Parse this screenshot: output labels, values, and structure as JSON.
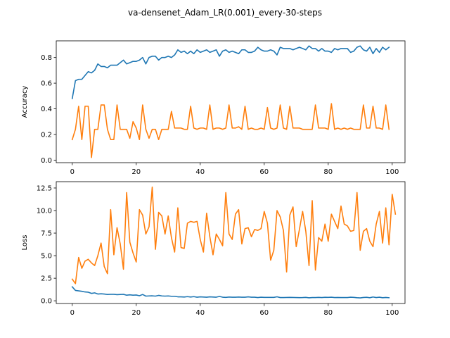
{
  "figure": {
    "suptitle": "va-densenet_Adam_LR(0.001)_every-30-steps"
  },
  "colors": {
    "blue": "#1f77b4",
    "orange": "#ff7f0e"
  },
  "chart_data": [
    {
      "type": "line",
      "ylabel": "Accuracy",
      "xlabel": "",
      "xlim": [
        -5,
        104
      ],
      "ylim": [
        -0.02,
        0.93
      ],
      "xticks": [
        0,
        20,
        40,
        60,
        80,
        100
      ],
      "yticks": [
        0.0,
        0.2,
        0.4,
        0.6,
        0.8
      ],
      "ytick_labels": [
        "0.0",
        "0.2",
        "0.4",
        "0.6",
        "0.8"
      ],
      "grid": false,
      "series": [
        {
          "color": "#1f77b4",
          "y": [
            0.48,
            0.62,
            0.63,
            0.63,
            0.66,
            0.69,
            0.68,
            0.7,
            0.75,
            0.73,
            0.73,
            0.72,
            0.74,
            0.74,
            0.74,
            0.76,
            0.78,
            0.75,
            0.76,
            0.77,
            0.77,
            0.78,
            0.8,
            0.75,
            0.8,
            0.81,
            0.81,
            0.78,
            0.8,
            0.8,
            0.81,
            0.8,
            0.82,
            0.86,
            0.84,
            0.85,
            0.83,
            0.85,
            0.83,
            0.86,
            0.84,
            0.85,
            0.86,
            0.84,
            0.85,
            0.86,
            0.81,
            0.85,
            0.86,
            0.84,
            0.85,
            0.84,
            0.83,
            0.86,
            0.86,
            0.84,
            0.84,
            0.85,
            0.88,
            0.86,
            0.85,
            0.85,
            0.86,
            0.85,
            0.82,
            0.88,
            0.87,
            0.87,
            0.87,
            0.86,
            0.87,
            0.88,
            0.87,
            0.86,
            0.89,
            0.87,
            0.87,
            0.85,
            0.87,
            0.85,
            0.85,
            0.84,
            0.87,
            0.86,
            0.87,
            0.87,
            0.87,
            0.84,
            0.85,
            0.88,
            0.89,
            0.86,
            0.85,
            0.88,
            0.83,
            0.87,
            0.84,
            0.88,
            0.86,
            0.88
          ]
        },
        {
          "color": "#ff7f0e",
          "y": [
            0.16,
            0.24,
            0.42,
            0.16,
            0.42,
            0.42,
            0.02,
            0.24,
            0.24,
            0.43,
            0.43,
            0.24,
            0.16,
            0.16,
            0.43,
            0.24,
            0.24,
            0.24,
            0.17,
            0.3,
            0.25,
            0.16,
            0.43,
            0.24,
            0.17,
            0.24,
            0.24,
            0.16,
            0.24,
            0.24,
            0.24,
            0.38,
            0.25,
            0.25,
            0.25,
            0.24,
            0.24,
            0.42,
            0.25,
            0.24,
            0.25,
            0.25,
            0.24,
            0.43,
            0.24,
            0.25,
            0.25,
            0.24,
            0.25,
            0.43,
            0.25,
            0.25,
            0.26,
            0.24,
            0.42,
            0.24,
            0.25,
            0.24,
            0.24,
            0.25,
            0.24,
            0.41,
            0.25,
            0.24,
            0.25,
            0.43,
            0.25,
            0.24,
            0.42,
            0.25,
            0.25,
            0.25,
            0.24,
            0.24,
            0.24,
            0.24,
            0.43,
            0.25,
            0.25,
            0.25,
            0.24,
            0.44,
            0.24,
            0.25,
            0.24,
            0.25,
            0.24,
            0.25,
            0.24,
            0.24,
            0.24,
            0.43,
            0.25,
            0.25,
            0.42,
            0.25,
            0.25,
            0.24,
            0.43,
            0.24
          ]
        }
      ]
    },
    {
      "type": "line",
      "ylabel": "Loss",
      "xlabel": "",
      "xlim": [
        -5,
        104
      ],
      "ylim": [
        -0.3,
        13.2
      ],
      "xticks": [
        0,
        20,
        40,
        60,
        80,
        100
      ],
      "yticks": [
        0.0,
        2.5,
        5.0,
        7.5,
        10.0,
        12.5
      ],
      "ytick_labels": [
        "0.0",
        "2.5",
        "5.0",
        "7.5",
        "10.0",
        "12.5"
      ],
      "grid": false,
      "series": [
        {
          "color": "#1f77b4",
          "y": [
            1.55,
            1.15,
            1.1,
            1.05,
            0.98,
            0.95,
            0.82,
            0.88,
            0.75,
            0.78,
            0.75,
            0.7,
            0.72,
            0.72,
            0.68,
            0.7,
            0.72,
            0.62,
            0.66,
            0.62,
            0.64,
            0.56,
            0.7,
            0.52,
            0.54,
            0.55,
            0.52,
            0.6,
            0.54,
            0.52,
            0.54,
            0.5,
            0.5,
            0.44,
            0.44,
            0.42,
            0.46,
            0.42,
            0.46,
            0.4,
            0.44,
            0.42,
            0.4,
            0.44,
            0.42,
            0.4,
            0.48,
            0.4,
            0.38,
            0.42,
            0.4,
            0.4,
            0.42,
            0.4,
            0.4,
            0.44,
            0.4,
            0.4,
            0.36,
            0.4,
            0.38,
            0.38,
            0.38,
            0.38,
            0.44,
            0.36,
            0.36,
            0.37,
            0.38,
            0.37,
            0.36,
            0.35,
            0.36,
            0.38,
            0.33,
            0.36,
            0.36,
            0.38,
            0.36,
            0.39,
            0.38,
            0.4,
            0.36,
            0.37,
            0.36,
            0.36,
            0.36,
            0.4,
            0.38,
            0.34,
            0.32,
            0.37,
            0.39,
            0.34,
            0.42,
            0.36,
            0.4,
            0.34,
            0.37,
            0.34
          ]
        },
        {
          "color": "#ff7f0e",
          "y": [
            2.4,
            1.9,
            4.8,
            3.6,
            4.4,
            4.6,
            4.2,
            3.9,
            5.0,
            6.4,
            3.8,
            3.0,
            10.1,
            5.1,
            8.1,
            6.3,
            3.5,
            12.0,
            6.5,
            5.3,
            4.3,
            10.1,
            9.5,
            7.4,
            8.2,
            12.6,
            5.7,
            9.8,
            9.4,
            7.4,
            9.4,
            7.0,
            5.4,
            10.3,
            5.9,
            5.8,
            8.6,
            8.8,
            8.7,
            8.8,
            6.8,
            5.4,
            9.7,
            7.1,
            5.1,
            7.4,
            6.8,
            6.1,
            12.0,
            7.4,
            6.8,
            9.6,
            10.1,
            6.3,
            8.0,
            8.1,
            7.1,
            7.9,
            7.8,
            8.0,
            9.9,
            8.6,
            4.5,
            5.6,
            10.0,
            9.3,
            7.8,
            3.2,
            9.5,
            10.4,
            6.0,
            7.9,
            9.9,
            7.7,
            3.9,
            11.1,
            3.4,
            7.0,
            6.6,
            8.5,
            6.6,
            9.6,
            8.8,
            8.0,
            10.5,
            8.5,
            8.3,
            7.7,
            7.8,
            12.0,
            5.6,
            7.7,
            8.0,
            6.6,
            6.0,
            8.5,
            9.9,
            6.4,
            10.3,
            6.2,
            11.8,
            9.6
          ]
        }
      ]
    }
  ]
}
